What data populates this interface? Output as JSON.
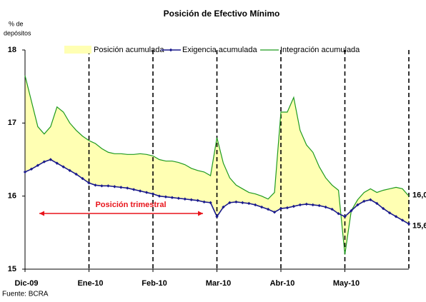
{
  "chart_data": {
    "type": "line",
    "title": "Posición de Efectivo Mínimo",
    "y_label": [
      "% de",
      "depósitos"
    ],
    "source": "Fuente: BCRA",
    "annotation": "Posición trimestral",
    "annotation_color": "#e8141b",
    "area": {
      "name": "Posición acumulada",
      "color": "#ffffb3"
    },
    "categories": [
      "Dic-09",
      null,
      null,
      null,
      null,
      null,
      null,
      null,
      null,
      null,
      "Ene-10",
      null,
      null,
      null,
      null,
      null,
      null,
      null,
      null,
      null,
      "Feb-10",
      null,
      null,
      null,
      null,
      null,
      null,
      null,
      null,
      null,
      "Mar-10",
      null,
      null,
      null,
      null,
      null,
      null,
      null,
      null,
      null,
      "Abr-10",
      null,
      null,
      null,
      null,
      null,
      null,
      null,
      null,
      null,
      "May-10",
      null,
      null,
      null,
      null,
      null,
      null,
      null,
      null,
      null,
      null
    ],
    "series": [
      {
        "name": "Exigencia acumulada",
        "color": "#1a1a8c",
        "values": [
          16.33,
          16.37,
          16.42,
          16.47,
          16.5,
          16.45,
          16.4,
          16.35,
          16.3,
          16.24,
          16.18,
          16.15,
          16.14,
          16.14,
          16.13,
          16.12,
          16.11,
          16.09,
          16.07,
          16.05,
          16.03,
          16.0,
          15.99,
          15.98,
          15.97,
          15.96,
          15.95,
          15.94,
          15.92,
          15.91,
          15.72,
          15.85,
          15.91,
          15.92,
          15.91,
          15.9,
          15.88,
          15.85,
          15.82,
          15.78,
          15.83,
          15.84,
          15.86,
          15.88,
          15.89,
          15.88,
          15.87,
          15.85,
          15.82,
          15.76,
          15.72,
          15.8,
          15.88,
          15.93,
          15.95,
          15.9,
          15.83,
          15.77,
          15.72,
          15.67,
          15.62
        ],
        "value_labels": [
          null,
          null,
          null,
          null,
          null,
          null,
          null,
          null,
          null,
          null,
          null,
          null,
          null,
          null,
          null,
          null,
          null,
          null,
          null,
          null,
          null,
          null,
          null,
          null,
          null,
          null,
          null,
          null,
          null,
          null,
          null,
          null,
          null,
          null,
          null,
          null,
          null,
          null,
          null,
          null,
          null,
          null,
          null,
          null,
          null,
          null,
          null,
          null,
          null,
          null,
          null,
          null,
          null,
          null,
          null,
          null,
          null,
          null,
          null,
          null,
          "15,6"
        ]
      },
      {
        "name": "Integración acumulada",
        "color": "#1e9a1e",
        "values": [
          17.65,
          17.3,
          16.95,
          16.85,
          16.95,
          17.22,
          17.15,
          17.0,
          16.9,
          16.82,
          16.76,
          16.72,
          16.65,
          16.6,
          16.58,
          16.58,
          16.57,
          16.57,
          16.58,
          16.57,
          16.55,
          16.5,
          16.48,
          16.48,
          16.46,
          16.43,
          16.38,
          16.35,
          16.33,
          16.28,
          16.8,
          16.45,
          16.25,
          16.15,
          16.1,
          16.05,
          16.03,
          16.0,
          15.96,
          16.05,
          17.15,
          17.15,
          17.35,
          16.9,
          16.7,
          16.6,
          16.4,
          16.25,
          16.15,
          16.08,
          15.2,
          15.8,
          15.95,
          16.05,
          16.1,
          16.05,
          16.08,
          16.1,
          16.12,
          16.1,
          16.0
        ],
        "value_labels": [
          null,
          null,
          null,
          null,
          null,
          null,
          null,
          null,
          null,
          null,
          null,
          null,
          null,
          null,
          null,
          null,
          null,
          null,
          null,
          null,
          null,
          null,
          null,
          null,
          null,
          null,
          null,
          null,
          null,
          null,
          null,
          null,
          null,
          null,
          null,
          null,
          null,
          null,
          null,
          null,
          null,
          null,
          null,
          null,
          null,
          null,
          null,
          null,
          null,
          null,
          null,
          null,
          null,
          null,
          null,
          null,
          null,
          null,
          null,
          null,
          "16,0"
        ]
      }
    ],
    "ylim": [
      15,
      18
    ],
    "yticks": [
      15,
      16,
      17,
      18
    ]
  }
}
